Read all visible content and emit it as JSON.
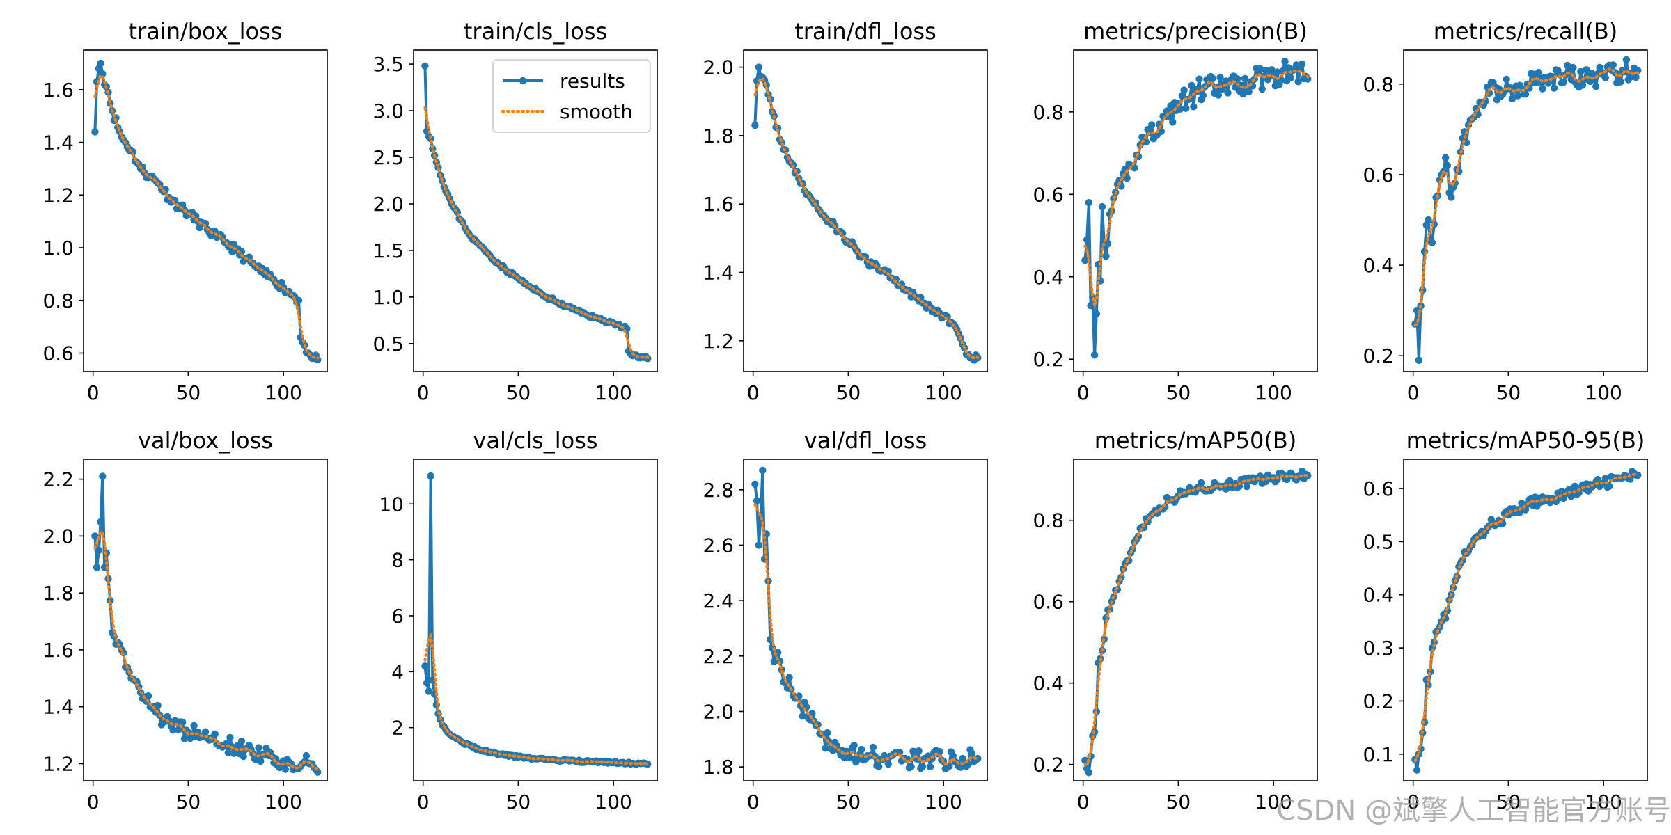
{
  "figure": {
    "watermark": "CSDN @斌擎人工智能官方账号"
  },
  "colors": {
    "results": "#1f77b4",
    "smooth": "#ff7f0e",
    "axis": "#000000"
  },
  "legend": {
    "results_label": "results",
    "smooth_label": "smooth",
    "placement": "top-right"
  },
  "chart_data": [
    {
      "type": "line",
      "title": "train/box_loss",
      "xlim": [
        -5,
        123
      ],
      "ylim": [
        0.53,
        1.75
      ],
      "xticks": [
        "0",
        "50",
        "100"
      ],
      "xtick_values": [
        0,
        50,
        100
      ],
      "yticks": [
        "0.6",
        "0.8",
        "1.0",
        "1.2",
        "1.4",
        "1.6"
      ],
      "ytick_values": [
        0.6,
        0.8,
        1.0,
        1.2,
        1.4,
        1.6
      ],
      "anchors": [
        [
          1,
          1.44
        ],
        [
          2,
          1.63
        ],
        [
          3,
          1.68
        ],
        [
          4,
          1.7
        ],
        [
          5,
          1.66
        ],
        [
          8,
          1.59
        ],
        [
          10,
          1.52
        ],
        [
          15,
          1.42
        ],
        [
          20,
          1.37
        ],
        [
          25,
          1.3
        ],
        [
          30,
          1.27
        ],
        [
          35,
          1.24
        ],
        [
          40,
          1.19
        ],
        [
          45,
          1.16
        ],
        [
          50,
          1.13
        ],
        [
          55,
          1.1
        ],
        [
          60,
          1.07
        ],
        [
          65,
          1.04
        ],
        [
          70,
          1.02
        ],
        [
          75,
          0.99
        ],
        [
          80,
          0.96
        ],
        [
          85,
          0.93
        ],
        [
          90,
          0.9
        ],
        [
          95,
          0.88
        ],
        [
          100,
          0.85
        ],
        [
          105,
          0.82
        ],
        [
          108,
          0.8
        ],
        [
          109,
          0.66
        ],
        [
          111,
          0.63
        ],
        [
          113,
          0.6
        ],
        [
          115,
          0.58
        ],
        [
          118,
          0.575
        ]
      ],
      "noise": 0.018,
      "seed": 11,
      "show_legend": false
    },
    {
      "type": "line",
      "title": "train/cls_loss",
      "xlim": [
        -5,
        123
      ],
      "ylim": [
        0.2,
        3.65
      ],
      "xticks": [
        "0",
        "50",
        "100"
      ],
      "xtick_values": [
        0,
        50,
        100
      ],
      "yticks": [
        "0.5",
        "1.0",
        "1.5",
        "2.0",
        "2.5",
        "3.0",
        "3.5"
      ],
      "ytick_values": [
        0.5,
        1.0,
        1.5,
        2.0,
        2.5,
        3.0,
        3.5
      ],
      "anchors": [
        [
          1,
          3.48
        ],
        [
          2,
          2.78
        ],
        [
          4,
          2.7
        ],
        [
          6,
          2.52
        ],
        [
          10,
          2.25
        ],
        [
          15,
          2.0
        ],
        [
          20,
          1.82
        ],
        [
          25,
          1.65
        ],
        [
          30,
          1.55
        ],
        [
          35,
          1.45
        ],
        [
          40,
          1.35
        ],
        [
          45,
          1.27
        ],
        [
          50,
          1.2
        ],
        [
          55,
          1.12
        ],
        [
          60,
          1.06
        ],
        [
          65,
          1.0
        ],
        [
          70,
          0.95
        ],
        [
          75,
          0.9
        ],
        [
          80,
          0.86
        ],
        [
          85,
          0.82
        ],
        [
          90,
          0.78
        ],
        [
          95,
          0.75
        ],
        [
          100,
          0.72
        ],
        [
          105,
          0.68
        ],
        [
          107,
          0.66
        ],
        [
          108,
          0.42
        ],
        [
          110,
          0.37
        ],
        [
          113,
          0.35
        ],
        [
          118,
          0.34
        ]
      ],
      "noise": 0.02,
      "seed": 23,
      "show_legend": true
    },
    {
      "type": "line",
      "title": "train/dfl_loss",
      "xlim": [
        -5,
        123
      ],
      "ylim": [
        1.11,
        2.05
      ],
      "xticks": [
        "0",
        "50",
        "100"
      ],
      "xtick_values": [
        0,
        50,
        100
      ],
      "yticks": [
        "1.2",
        "1.4",
        "1.6",
        "1.8",
        "2.0"
      ],
      "ytick_values": [
        1.2,
        1.4,
        1.6,
        1.8,
        2.0
      ],
      "anchors": [
        [
          1,
          1.83
        ],
        [
          2,
          1.96
        ],
        [
          3,
          2.0
        ],
        [
          5,
          1.97
        ],
        [
          8,
          1.92
        ],
        [
          10,
          1.87
        ],
        [
          15,
          1.78
        ],
        [
          20,
          1.72
        ],
        [
          25,
          1.66
        ],
        [
          30,
          1.62
        ],
        [
          35,
          1.58
        ],
        [
          40,
          1.55
        ],
        [
          45,
          1.52
        ],
        [
          50,
          1.49
        ],
        [
          55,
          1.46
        ],
        [
          60,
          1.43
        ],
        [
          65,
          1.42
        ],
        [
          70,
          1.4
        ],
        [
          75,
          1.38
        ],
        [
          80,
          1.35
        ],
        [
          85,
          1.33
        ],
        [
          90,
          1.31
        ],
        [
          95,
          1.29
        ],
        [
          100,
          1.27
        ],
        [
          105,
          1.25
        ],
        [
          108,
          1.22
        ],
        [
          110,
          1.19
        ],
        [
          113,
          1.16
        ],
        [
          115,
          1.15
        ],
        [
          118,
          1.15
        ]
      ],
      "noise": 0.012,
      "seed": 37,
      "show_legend": false
    },
    {
      "type": "line",
      "title": "metrics/precision(B)",
      "xlim": [
        -5,
        123
      ],
      "ylim": [
        0.17,
        0.95
      ],
      "xticks": [
        "0",
        "50",
        "100"
      ],
      "xtick_values": [
        0,
        50,
        100
      ],
      "yticks": [
        "0.2",
        "0.4",
        "0.6",
        "0.8"
      ],
      "ytick_values": [
        0.2,
        0.4,
        0.6,
        0.8
      ],
      "anchors": [
        [
          1,
          0.44
        ],
        [
          2,
          0.49
        ],
        [
          3,
          0.58
        ],
        [
          4,
          0.33
        ],
        [
          5,
          0.35
        ],
        [
          6,
          0.21
        ],
        [
          7,
          0.31
        ],
        [
          8,
          0.43
        ],
        [
          9,
          0.39
        ],
        [
          10,
          0.57
        ],
        [
          12,
          0.45
        ],
        [
          15,
          0.56
        ],
        [
          20,
          0.62
        ],
        [
          25,
          0.67
        ],
        [
          30,
          0.72
        ],
        [
          35,
          0.75
        ],
        [
          40,
          0.77
        ],
        [
          45,
          0.79
        ],
        [
          50,
          0.82
        ],
        [
          55,
          0.83
        ],
        [
          60,
          0.85
        ],
        [
          70,
          0.86
        ],
        [
          80,
          0.86
        ],
        [
          90,
          0.88
        ],
        [
          100,
          0.89
        ],
        [
          110,
          0.9
        ],
        [
          118,
          0.88
        ]
      ],
      "noise": 0.03,
      "seed": 41,
      "show_legend": false
    },
    {
      "type": "line",
      "title": "metrics/recall(B)",
      "xlim": [
        -5,
        123
      ],
      "ylim": [
        0.165,
        0.875
      ],
      "xticks": [
        "0",
        "50",
        "100"
      ],
      "xtick_values": [
        0,
        50,
        100
      ],
      "yticks": [
        "0.2",
        "0.4",
        "0.6",
        "0.8"
      ],
      "ytick_values": [
        0.2,
        0.4,
        0.6,
        0.8
      ],
      "anchors": [
        [
          1,
          0.27
        ],
        [
          2,
          0.3
        ],
        [
          3,
          0.19
        ],
        [
          4,
          0.31
        ],
        [
          6,
          0.43
        ],
        [
          8,
          0.5
        ],
        [
          10,
          0.45
        ],
        [
          12,
          0.55
        ],
        [
          15,
          0.6
        ],
        [
          18,
          0.62
        ],
        [
          20,
          0.55
        ],
        [
          25,
          0.65
        ],
        [
          30,
          0.72
        ],
        [
          35,
          0.76
        ],
        [
          40,
          0.78
        ],
        [
          45,
          0.79
        ],
        [
          50,
          0.79
        ],
        [
          60,
          0.8
        ],
        [
          70,
          0.81
        ],
        [
          80,
          0.82
        ],
        [
          90,
          0.81
        ],
        [
          100,
          0.82
        ],
        [
          110,
          0.83
        ],
        [
          118,
          0.83
        ]
      ],
      "noise": 0.025,
      "seed": 53,
      "show_legend": false
    },
    {
      "type": "line",
      "title": "val/box_loss",
      "xlim": [
        -5,
        123
      ],
      "ylim": [
        1.14,
        2.27
      ],
      "xticks": [
        "0",
        "50",
        "100"
      ],
      "xtick_values": [
        0,
        50,
        100
      ],
      "yticks": [
        "1.2",
        "1.4",
        "1.6",
        "1.8",
        "2.0",
        "2.2"
      ],
      "ytick_values": [
        1.2,
        1.4,
        1.6,
        1.8,
        2.0,
        2.2
      ],
      "anchors": [
        [
          1,
          2.0
        ],
        [
          2,
          1.89
        ],
        [
          3,
          1.95
        ],
        [
          5,
          2.21
        ],
        [
          6,
          1.89
        ],
        [
          7,
          1.94
        ],
        [
          8,
          1.85
        ],
        [
          10,
          1.66
        ],
        [
          12,
          1.62
        ],
        [
          15,
          1.6
        ],
        [
          20,
          1.5
        ],
        [
          25,
          1.45
        ],
        [
          30,
          1.4
        ],
        [
          35,
          1.37
        ],
        [
          40,
          1.35
        ],
        [
          45,
          1.32
        ],
        [
          50,
          1.31
        ],
        [
          60,
          1.29
        ],
        [
          70,
          1.27
        ],
        [
          80,
          1.25
        ],
        [
          90,
          1.23
        ],
        [
          100,
          1.21
        ],
        [
          110,
          1.2
        ],
        [
          114,
          1.2
        ],
        [
          118,
          1.17
        ]
      ],
      "noise": 0.03,
      "seed": 67,
      "show_legend": false
    },
    {
      "type": "line",
      "title": "val/cls_loss",
      "xlim": [
        -5,
        123
      ],
      "ylim": [
        0.1,
        11.6
      ],
      "xticks": [
        "0",
        "50",
        "100"
      ],
      "xtick_values": [
        0,
        50,
        100
      ],
      "yticks": [
        "2",
        "4",
        "6",
        "8",
        "10"
      ],
      "ytick_values": [
        2,
        4,
        6,
        8,
        10
      ],
      "anchors": [
        [
          1,
          4.2
        ],
        [
          2,
          3.6
        ],
        [
          3,
          3.3
        ],
        [
          4,
          11.0
        ],
        [
          5,
          3.7
        ],
        [
          6,
          3.2
        ],
        [
          8,
          2.5
        ],
        [
          10,
          2.1
        ],
        [
          15,
          1.7
        ],
        [
          20,
          1.5
        ],
        [
          25,
          1.35
        ],
        [
          30,
          1.2
        ],
        [
          40,
          1.05
        ],
        [
          50,
          0.95
        ],
        [
          60,
          0.88
        ],
        [
          70,
          0.83
        ],
        [
          80,
          0.8
        ],
        [
          90,
          0.78
        ],
        [
          100,
          0.75
        ],
        [
          110,
          0.72
        ],
        [
          118,
          0.7
        ]
      ],
      "noise": 0.04,
      "seed": 79,
      "show_legend": false
    },
    {
      "type": "line",
      "title": "val/dfl_loss",
      "xlim": [
        -5,
        123
      ],
      "ylim": [
        1.75,
        2.91
      ],
      "xticks": [
        "0",
        "50",
        "100"
      ],
      "xtick_values": [
        0,
        50,
        100
      ],
      "yticks": [
        "1.8",
        "2.0",
        "2.2",
        "2.4",
        "2.6",
        "2.8"
      ],
      "ytick_values": [
        1.8,
        2.0,
        2.2,
        2.4,
        2.6,
        2.8
      ],
      "anchors": [
        [
          1,
          2.82
        ],
        [
          2,
          2.76
        ],
        [
          3,
          2.6
        ],
        [
          4,
          2.7
        ],
        [
          5,
          2.87
        ],
        [
          6,
          2.55
        ],
        [
          7,
          2.64
        ],
        [
          8,
          2.47
        ],
        [
          9,
          2.26
        ],
        [
          10,
          2.23
        ],
        [
          12,
          2.2
        ],
        [
          15,
          2.15
        ],
        [
          20,
          2.08
        ],
        [
          25,
          2.02
        ],
        [
          30,
          1.97
        ],
        [
          35,
          1.92
        ],
        [
          40,
          1.89
        ],
        [
          45,
          1.86
        ],
        [
          50,
          1.85
        ],
        [
          60,
          1.84
        ],
        [
          70,
          1.83
        ],
        [
          80,
          1.83
        ],
        [
          90,
          1.83
        ],
        [
          100,
          1.82
        ],
        [
          110,
          1.83
        ],
        [
          118,
          1.83
        ]
      ],
      "noise": 0.035,
      "seed": 83,
      "show_legend": false
    },
    {
      "type": "line",
      "title": "metrics/mAP50(B)",
      "xlim": [
        -5,
        123
      ],
      "ylim": [
        0.16,
        0.95
      ],
      "xticks": [
        "0",
        "50",
        "100"
      ],
      "xtick_values": [
        0,
        50,
        100
      ],
      "yticks": [
        "0.2",
        "0.4",
        "0.6",
        "0.8"
      ],
      "ytick_values": [
        0.2,
        0.4,
        0.6,
        0.8
      ],
      "anchors": [
        [
          1,
          0.21
        ],
        [
          2,
          0.19
        ],
        [
          3,
          0.18
        ],
        [
          4,
          0.22
        ],
        [
          5,
          0.27
        ],
        [
          6,
          0.28
        ],
        [
          7,
          0.33
        ],
        [
          8,
          0.45
        ],
        [
          9,
          0.46
        ],
        [
          10,
          0.48
        ],
        [
          12,
          0.56
        ],
        [
          15,
          0.6
        ],
        [
          20,
          0.66
        ],
        [
          25,
          0.72
        ],
        [
          30,
          0.78
        ],
        [
          35,
          0.81
        ],
        [
          40,
          0.83
        ],
        [
          45,
          0.85
        ],
        [
          50,
          0.86
        ],
        [
          55,
          0.87
        ],
        [
          60,
          0.88
        ],
        [
          70,
          0.885
        ],
        [
          80,
          0.89
        ],
        [
          90,
          0.895
        ],
        [
          100,
          0.905
        ],
        [
          110,
          0.91
        ],
        [
          118,
          0.91
        ]
      ],
      "noise": 0.012,
      "seed": 97,
      "show_legend": false
    },
    {
      "type": "line",
      "title": "metrics/mAP50-95(B)",
      "xlim": [
        -5,
        123
      ],
      "ylim": [
        0.05,
        0.655
      ],
      "xticks": [
        "0",
        "50",
        "100"
      ],
      "xtick_values": [
        0,
        50,
        100
      ],
      "yticks": [
        "0.1",
        "0.2",
        "0.3",
        "0.4",
        "0.5",
        "0.6"
      ],
      "ytick_values": [
        0.1,
        0.2,
        0.3,
        0.4,
        0.5,
        0.6
      ],
      "anchors": [
        [
          1,
          0.09
        ],
        [
          2,
          0.07
        ],
        [
          3,
          0.1
        ],
        [
          4,
          0.11
        ],
        [
          5,
          0.14
        ],
        [
          6,
          0.16
        ],
        [
          7,
          0.24
        ],
        [
          8,
          0.23
        ],
        [
          10,
          0.3
        ],
        [
          12,
          0.33
        ],
        [
          15,
          0.35
        ],
        [
          18,
          0.37
        ],
        [
          20,
          0.4
        ],
        [
          25,
          0.46
        ],
        [
          30,
          0.49
        ],
        [
          35,
          0.51
        ],
        [
          40,
          0.53
        ],
        [
          45,
          0.54
        ],
        [
          50,
          0.55
        ],
        [
          55,
          0.56
        ],
        [
          60,
          0.57
        ],
        [
          70,
          0.58
        ],
        [
          80,
          0.59
        ],
        [
          90,
          0.6
        ],
        [
          100,
          0.61
        ],
        [
          110,
          0.62
        ],
        [
          118,
          0.625
        ]
      ],
      "noise": 0.01,
      "seed": 101,
      "show_legend": false
    }
  ]
}
